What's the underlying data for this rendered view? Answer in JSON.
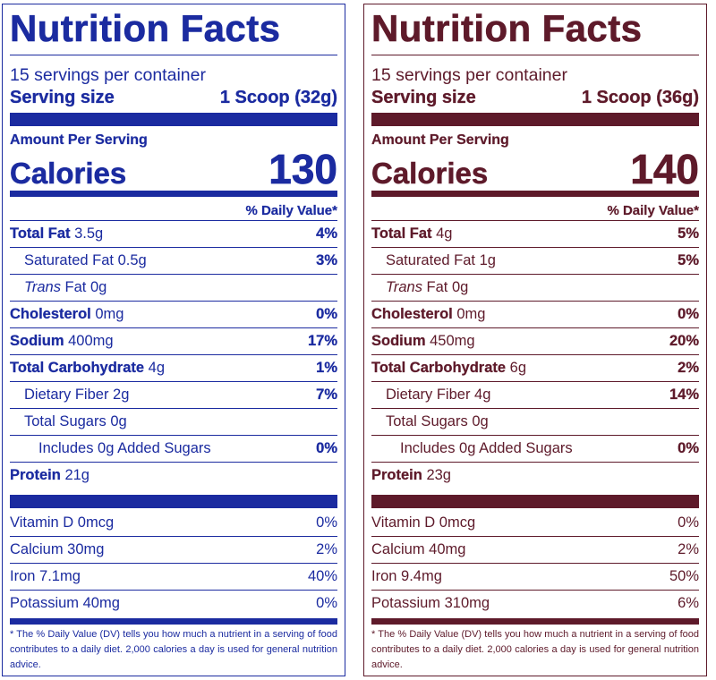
{
  "labels": [
    {
      "title": "Nutrition Facts",
      "servings": "15 servings per container",
      "serving_size_label": "Serving size",
      "serving_size_value": "1 Scoop (32g)",
      "amount_per_serving": "Amount Per Serving",
      "calories_label": "Calories",
      "calories_value": "130",
      "dv_header": "% Daily Value*",
      "nutrients": [
        {
          "name": "Total Fat",
          "amount": "3.5g",
          "dv": "4%"
        },
        {
          "name": "Saturated Fat",
          "amount": "0.5g",
          "dv": "3%"
        },
        {
          "name": "Trans",
          "amount": "Fat 0g",
          "dv": ""
        },
        {
          "name": "Cholesterol",
          "amount": "0mg",
          "dv": "0%"
        },
        {
          "name": "Sodium",
          "amount": "400mg",
          "dv": "17%"
        },
        {
          "name": "Total Carbohydrate",
          "amount": "4g",
          "dv": "1%"
        },
        {
          "name": "Dietary Fiber",
          "amount": "2g",
          "dv": "7%"
        },
        {
          "name": "Total Sugars",
          "amount": "0g",
          "dv": ""
        },
        {
          "name": "Includes 0g Added Sugars",
          "amount": "",
          "dv": "0%"
        },
        {
          "name": "Protein",
          "amount": "21g",
          "dv": ""
        }
      ],
      "vitamins": [
        {
          "name": "Vitamin D 0mcg",
          "dv": "0%"
        },
        {
          "name": "Calcium 30mg",
          "dv": "2%"
        },
        {
          "name": "Iron 7.1mg",
          "dv": "40%"
        },
        {
          "name": "Potassium 40mg",
          "dv": "0%"
        }
      ],
      "footnote": "* The % Daily Value (DV) tells you how much a nutrient in a serving of food contributes to a daily diet. 2,000 calories a day is used for general nutrition advice.",
      "color": "#1b2ba0"
    },
    {
      "title": "Nutrition Facts",
      "servings": "15 servings per container",
      "serving_size_label": "Serving size",
      "serving_size_value": "1 Scoop (36g)",
      "amount_per_serving": "Amount Per Serving",
      "calories_label": "Calories",
      "calories_value": "140",
      "dv_header": "% Daily Value*",
      "nutrients": [
        {
          "name": "Total Fat",
          "amount": "4g",
          "dv": "5%"
        },
        {
          "name": "Saturated Fat",
          "amount": "1g",
          "dv": "5%"
        },
        {
          "name": "Trans",
          "amount": "Fat 0g",
          "dv": ""
        },
        {
          "name": "Cholesterol",
          "amount": "0mg",
          "dv": "0%"
        },
        {
          "name": "Sodium",
          "amount": "450mg",
          "dv": "20%"
        },
        {
          "name": "Total Carbohydrate",
          "amount": "6g",
          "dv": "2%"
        },
        {
          "name": "Dietary Fiber",
          "amount": "4g",
          "dv": "14%"
        },
        {
          "name": "Total Sugars",
          "amount": "0g",
          "dv": ""
        },
        {
          "name": "Includes 0g Added Sugars",
          "amount": "",
          "dv": "0%"
        },
        {
          "name": "Protein",
          "amount": "23g",
          "dv": ""
        }
      ],
      "vitamins": [
        {
          "name": "Vitamin D 0mcg",
          "dv": "0%"
        },
        {
          "name": "Calcium 40mg",
          "dv": "2%"
        },
        {
          "name": "Iron 9.4mg",
          "dv": "50%"
        },
        {
          "name": "Potassium 310mg",
          "dv": "6%"
        }
      ],
      "footnote": "* The % Daily Value (DV) tells you how much a nutrient in a serving of food contributes to a daily diet. 2,000 calories a day is used for general nutrition advice.",
      "color": "#5e1a2a"
    }
  ]
}
